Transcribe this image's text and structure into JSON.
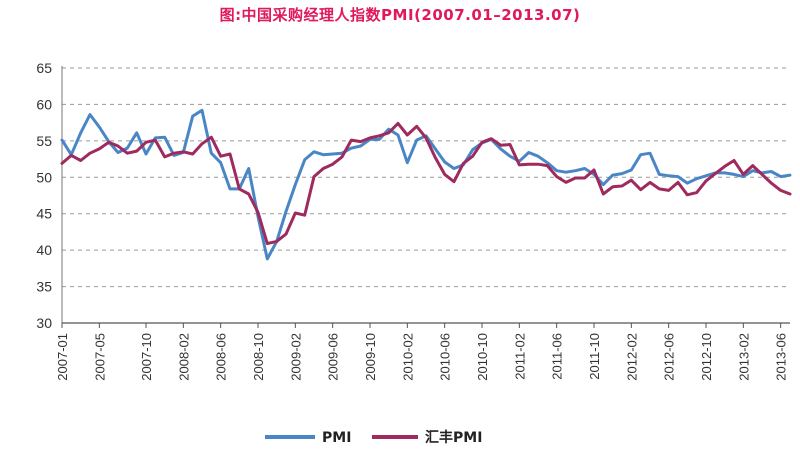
{
  "chart_data": {
    "type": "line",
    "title": "图:中国采购经理人指数PMI(2007.01–2013.07)",
    "ylim": [
      30,
      65
    ],
    "yticks": [
      30,
      35,
      40,
      45,
      50,
      55,
      60,
      65
    ],
    "grid": "horizontal-dashed",
    "legend_position": "bottom",
    "x": [
      "2007-01",
      "2007-02",
      "2007-03",
      "2007-04",
      "2007-05",
      "2007-06",
      "2007-07",
      "2007-08",
      "2007-09",
      "2007-10",
      "2007-11",
      "2007-12",
      "2008-01",
      "2008-02",
      "2008-03",
      "2008-04",
      "2008-05",
      "2008-06",
      "2008-07",
      "2008-08",
      "2008-09",
      "2008-10",
      "2008-11",
      "2008-12",
      "2009-01",
      "2009-02",
      "2009-03",
      "2009-04",
      "2009-05",
      "2009-06",
      "2009-07",
      "2009-08",
      "2009-09",
      "2009-10",
      "2009-11",
      "2009-12",
      "2010-01",
      "2010-02",
      "2010-03",
      "2010-04",
      "2010-05",
      "2010-06",
      "2010-07",
      "2010-08",
      "2010-09",
      "2010-10",
      "2010-11",
      "2010-12",
      "2011-01",
      "2011-02",
      "2011-03",
      "2011-04",
      "2011-05",
      "2011-06",
      "2011-07",
      "2011-08",
      "2011-09",
      "2011-10",
      "2011-11",
      "2011-12",
      "2012-01",
      "2012-02",
      "2012-03",
      "2012-04",
      "2012-05",
      "2012-06",
      "2012-07",
      "2012-08",
      "2012-09",
      "2012-10",
      "2012-11",
      "2012-12",
      "2013-01",
      "2013-02",
      "2013-03",
      "2013-04",
      "2013-05",
      "2013-06",
      "2013-07"
    ],
    "xtick_labels": [
      "2007-01",
      "2007-05",
      "2007-10",
      "2008-02",
      "2008-06",
      "2008-10",
      "2009-02",
      "2009-06",
      "2009-10",
      "2010-02",
      "2010-06",
      "2010-10",
      "2011-02",
      "2011-06",
      "2011-10",
      "2012-02",
      "2012-06",
      "2012-10",
      "2013-02",
      "2013-06"
    ],
    "xtick_indices": [
      0,
      4,
      9,
      13,
      17,
      21,
      25,
      29,
      33,
      37,
      41,
      45,
      49,
      53,
      57,
      61,
      65,
      69,
      73,
      77
    ],
    "series": [
      {
        "name": "PMI",
        "color": "#4a86c6",
        "values": [
          55.1,
          53.1,
          56.1,
          58.6,
          56.9,
          54.9,
          53.4,
          54.0,
          56.1,
          53.2,
          55.4,
          55.5,
          53.0,
          53.4,
          58.4,
          59.2,
          53.3,
          52.0,
          48.4,
          48.4,
          51.2,
          44.6,
          38.8,
          41.2,
          45.3,
          49.0,
          52.4,
          53.5,
          53.1,
          53.2,
          53.3,
          54.0,
          54.3,
          55.2,
          55.2,
          56.6,
          55.8,
          52.0,
          55.1,
          55.7,
          53.9,
          52.1,
          51.2,
          51.7,
          53.8,
          54.7,
          55.2,
          53.9,
          52.9,
          52.2,
          53.4,
          52.9,
          52.0,
          50.9,
          50.7,
          50.9,
          51.2,
          50.4,
          49.0,
          50.3,
          50.5,
          51.0,
          53.1,
          53.3,
          50.4,
          50.2,
          50.1,
          49.2,
          49.8,
          50.2,
          50.6,
          50.6,
          50.4,
          50.1,
          50.9,
          50.6,
          50.8,
          50.1,
          50.3
        ]
      },
      {
        "name": "汇丰PMI",
        "color": "#9e2a5e",
        "values": [
          51.9,
          53.0,
          52.3,
          53.3,
          53.9,
          54.8,
          54.3,
          53.3,
          53.6,
          54.8,
          55.1,
          52.8,
          53.3,
          53.5,
          53.2,
          54.6,
          55.5,
          52.9,
          53.2,
          48.4,
          47.7,
          45.2,
          40.9,
          41.2,
          42.2,
          45.1,
          44.8,
          50.1,
          51.2,
          51.8,
          52.8,
          55.1,
          54.9,
          55.4,
          55.7,
          56.1,
          57.4,
          55.8,
          57.0,
          55.4,
          52.7,
          50.4,
          49.4,
          51.9,
          52.9,
          54.8,
          55.3,
          54.4,
          54.5,
          51.7,
          51.8,
          51.8,
          51.6,
          50.1,
          49.3,
          49.9,
          49.9,
          51.0,
          47.7,
          48.7,
          48.8,
          49.6,
          48.3,
          49.3,
          48.4,
          48.2,
          49.3,
          47.6,
          47.9,
          49.5,
          50.5,
          51.5,
          52.3,
          50.4,
          51.6,
          50.4,
          49.2,
          48.2,
          47.7
        ]
      }
    ]
  }
}
